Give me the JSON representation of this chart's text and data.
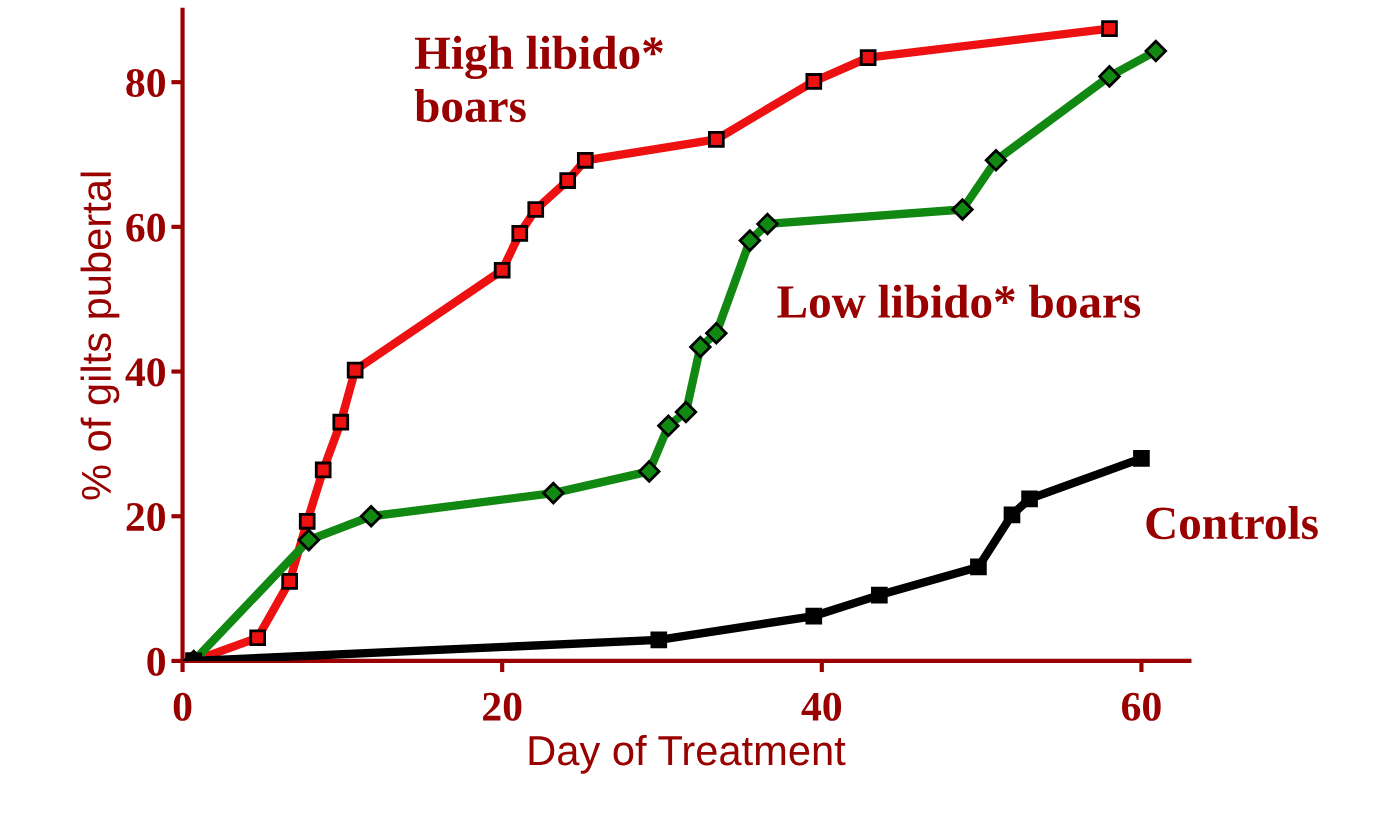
{
  "chart_data": {
    "type": "line",
    "xlabel": "Day of Treatment",
    "ylabel": "% of gilts pubertal",
    "xlim": [
      0,
      63
    ],
    "ylim": [
      0,
      90
    ],
    "xticks": [
      0,
      20,
      40,
      60
    ],
    "yticks": [
      0,
      20,
      40,
      60,
      80
    ],
    "grid": false,
    "legend": false,
    "line_style": "solid",
    "series": [
      {
        "name": "High libido*\nboars",
        "color": "#ee1111",
        "marker": "square",
        "x": [
          0.7,
          4.7,
          6.7,
          7.8,
          8.8,
          9.9,
          10.8,
          20,
          21.1,
          22.1,
          24.1,
          25.2,
          33.4,
          39.5,
          42.9,
          58
        ],
        "values": [
          0,
          3.2,
          11,
          19.3,
          26.4,
          33,
          40.2,
          54,
          59.1,
          62.4,
          66.4,
          69.2,
          72.1,
          80.1,
          83.4,
          87.4
        ]
      },
      {
        "name": "Low libido* boars",
        "color": "#118811",
        "marker": "diamond",
        "x": [
          0.7,
          7.9,
          11.8,
          23.2,
          29.2,
          30.4,
          31.5,
          32.4,
          33.4,
          35.5,
          36.6,
          48.8,
          50.9,
          58,
          60.9
        ],
        "values": [
          0,
          16.7,
          20,
          23.2,
          26.2,
          32.5,
          34.4,
          43.4,
          45.3,
          58.1,
          60.4,
          62.4,
          69.2,
          80.8,
          84.3
        ]
      },
      {
        "name": "Controls",
        "color": "#000000",
        "marker": "square",
        "x": [
          0.7,
          29.8,
          39.5,
          43.6,
          49.8,
          51.9,
          53,
          60
        ],
        "values": [
          0,
          2.9,
          6.2,
          9.1,
          13,
          20.2,
          22.4,
          28
        ]
      }
    ]
  }
}
